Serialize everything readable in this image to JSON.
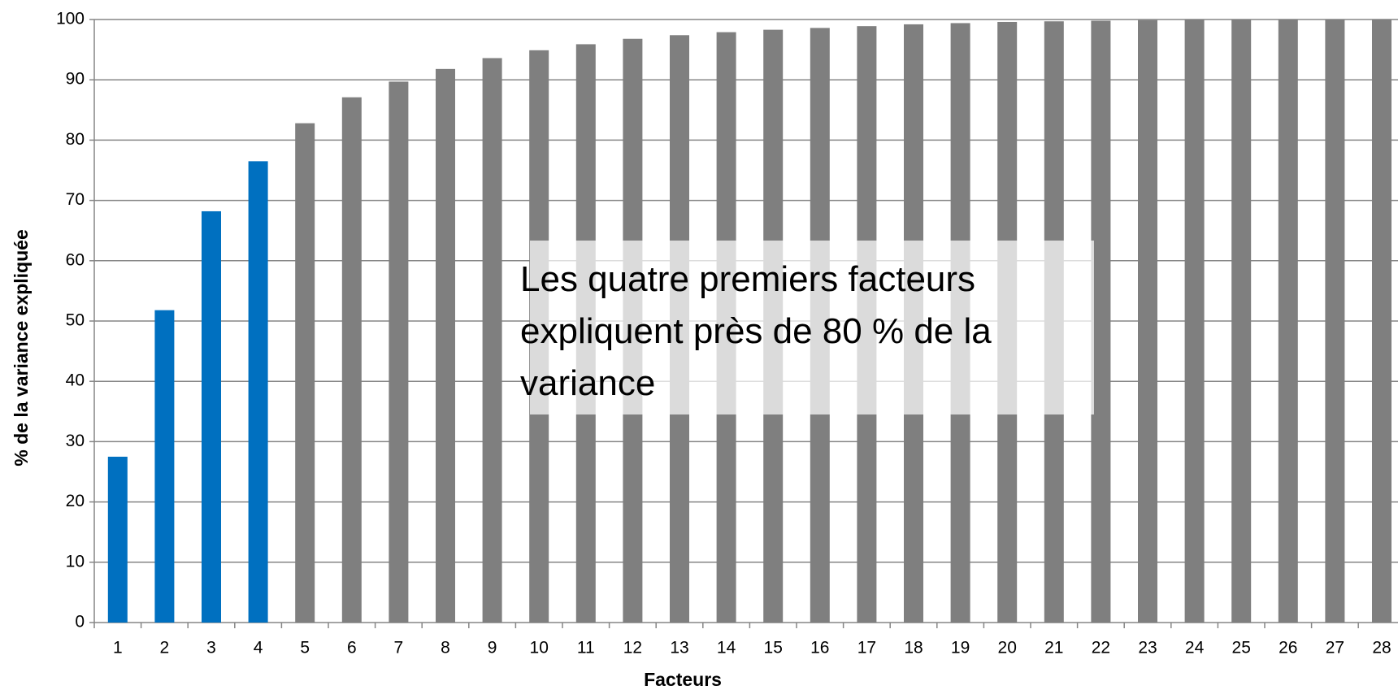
{
  "chart_data": {
    "type": "bar",
    "categories": [
      "1",
      "2",
      "3",
      "4",
      "5",
      "6",
      "7",
      "8",
      "9",
      "10",
      "11",
      "12",
      "13",
      "14",
      "15",
      "16",
      "17",
      "18",
      "19",
      "20",
      "21",
      "22",
      "23",
      "24",
      "25",
      "26",
      "27",
      "28"
    ],
    "values": [
      27.5,
      51.8,
      68.2,
      76.5,
      82.8,
      87.1,
      89.7,
      91.8,
      93.6,
      94.9,
      95.9,
      96.8,
      97.4,
      97.9,
      98.3,
      98.6,
      98.9,
      99.2,
      99.4,
      99.6,
      99.7,
      99.8,
      99.9,
      100,
      100,
      100,
      100,
      100
    ],
    "colors": [
      "#0070c0",
      "#0070c0",
      "#0070c0",
      "#0070c0",
      "#7f7f7f",
      "#7f7f7f",
      "#7f7f7f",
      "#7f7f7f",
      "#7f7f7f",
      "#7f7f7f",
      "#7f7f7f",
      "#7f7f7f",
      "#7f7f7f",
      "#7f7f7f",
      "#7f7f7f",
      "#7f7f7f",
      "#7f7f7f",
      "#7f7f7f",
      "#7f7f7f",
      "#7f7f7f",
      "#7f7f7f",
      "#7f7f7f",
      "#7f7f7f",
      "#7f7f7f",
      "#7f7f7f",
      "#7f7f7f",
      "#7f7f7f",
      "#7f7f7f"
    ],
    "ylim": [
      0,
      100
    ],
    "yticks": [
      0,
      10,
      20,
      30,
      40,
      50,
      60,
      70,
      80,
      90,
      100
    ],
    "grid": true,
    "x_label": "Facteurs",
    "y_label": "% de la variance expliquée",
    "annotation": "Les quatre premiers facteurs expliquent près de 80 % de la variance"
  }
}
